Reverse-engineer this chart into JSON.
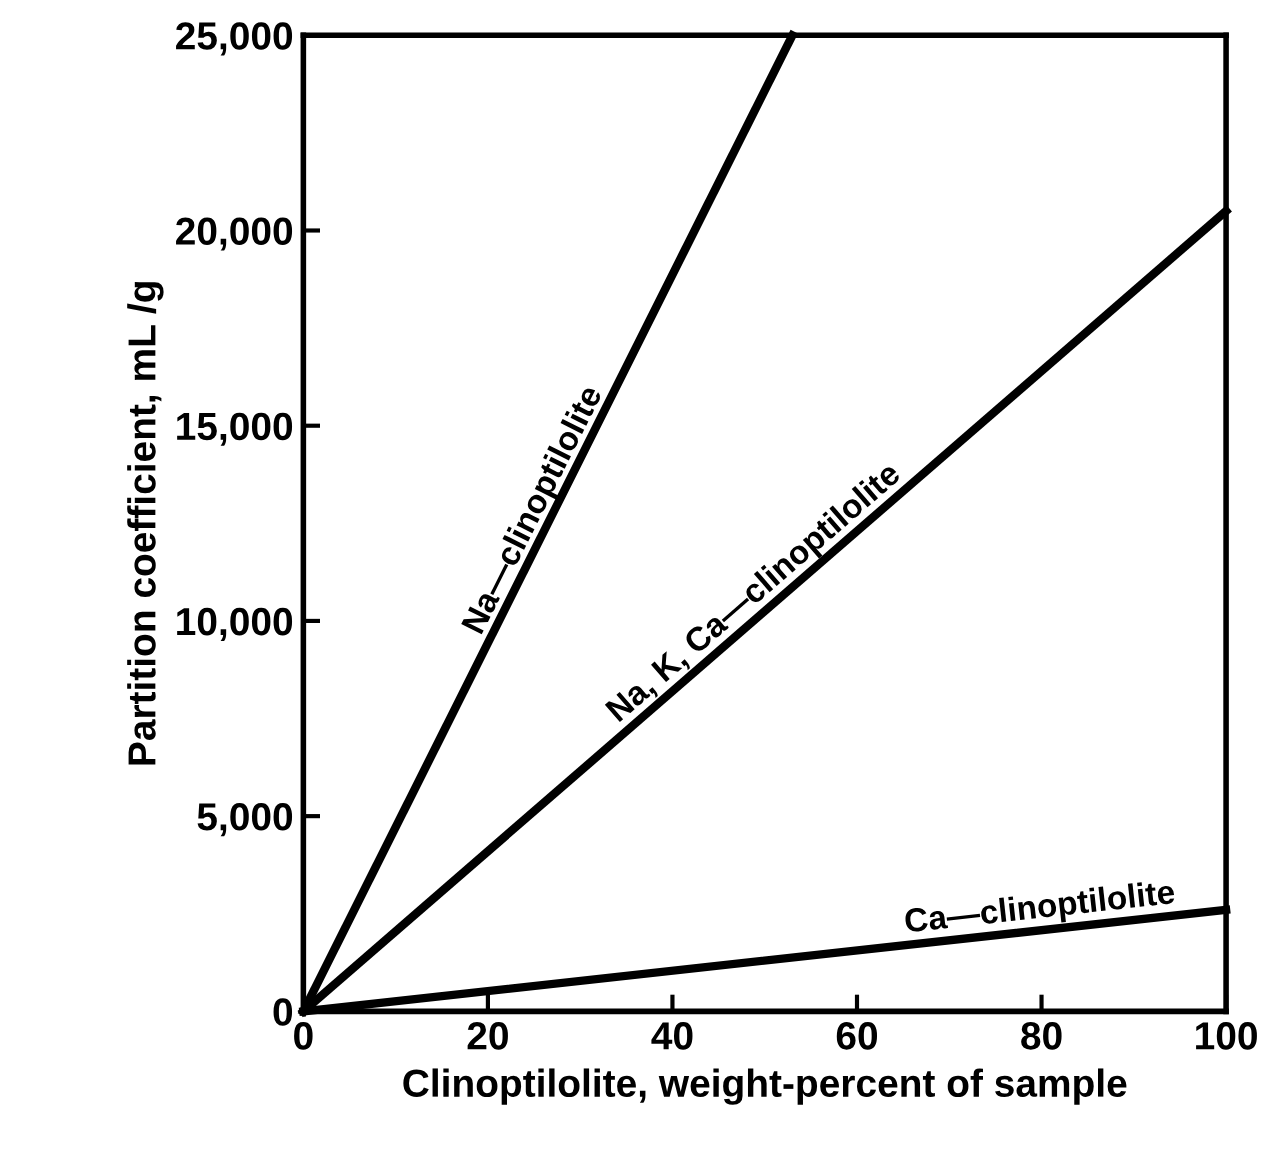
{
  "chart_data": {
    "type": "line",
    "xlabel": "Clinoptilolite, weight-percent of sample",
    "ylabel": "Partition coefficient, mL /g",
    "xlim": [
      0,
      100
    ],
    "ylim": [
      0,
      25000
    ],
    "xticks": [
      0,
      20,
      40,
      60,
      80,
      100
    ],
    "yticks": [
      {
        "value": 0,
        "label": "0"
      },
      {
        "value": 5000,
        "label": "5,000"
      },
      {
        "value": 10000,
        "label": "10,000"
      },
      {
        "value": 15000,
        "label": "15,000"
      },
      {
        "value": 20000,
        "label": "20,000"
      },
      {
        "value": 25000,
        "label": "25,000"
      }
    ],
    "series": [
      {
        "name": "Na—clinoptilolite",
        "color": "#000000",
        "x": [
          0,
          53
        ],
        "values": [
          0,
          25000
        ]
      },
      {
        "name": "Na, K, Ca—clinoptilolite",
        "color": "#000000",
        "x": [
          0,
          100
        ],
        "values": [
          0,
          20500
        ]
      },
      {
        "name": "Ca—clinoptilolite",
        "color": "#000000",
        "x": [
          0,
          100
        ],
        "values": [
          0,
          2600
        ]
      }
    ],
    "grid": false,
    "legend": false,
    "marker": "none",
    "line_style": "solid"
  }
}
